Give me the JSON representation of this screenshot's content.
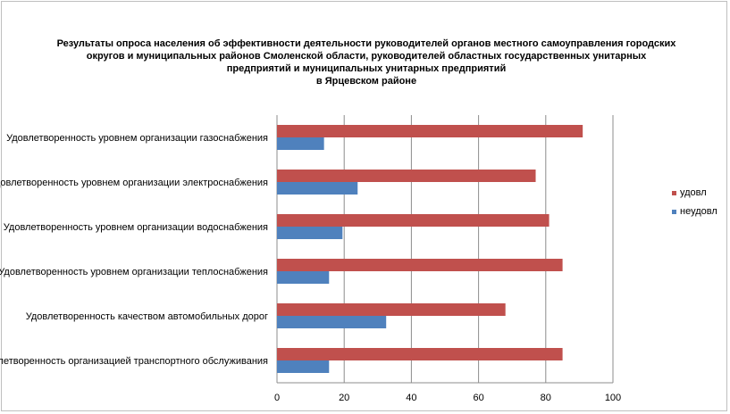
{
  "chart_data": {
    "type": "bar",
    "orientation": "horizontal",
    "title_lines": [
      "Результаты опроса населения об эффективности деятельности руководителей органов местного самоуправления городских",
      "округов и муниципальных районов Смоленской области, руководителей областных государственных унитарных",
      "предприятий и муниципальных унитарных предприятий",
      "в Ярцевском районе"
    ],
    "categories": [
      "Удовлетворенность уровнем организации газоснабжения",
      "Удовлетворенность уровнем организации электроснабжения",
      "Удовлетворенность уровнем организации водоснабжения",
      "Удовлетворенность уровнем организации теплоснабжения",
      "Удовлетворенность качеством автомобильных дорог",
      "Удовлетворенность организацией транспортного обслуживания"
    ],
    "series": [
      {
        "name": "удовл",
        "color": "#c0504d",
        "values": [
          91,
          77,
          81,
          85,
          68,
          85
        ]
      },
      {
        "name": "неудовл",
        "color": "#4f81bd",
        "values": [
          14,
          24,
          19.5,
          15.5,
          32.5,
          15.5
        ]
      }
    ],
    "xlim": [
      0,
      100
    ],
    "xticks": [
      "0",
      "20",
      "40",
      "60",
      "80",
      "100"
    ],
    "grid": true,
    "legend_position": "right"
  }
}
